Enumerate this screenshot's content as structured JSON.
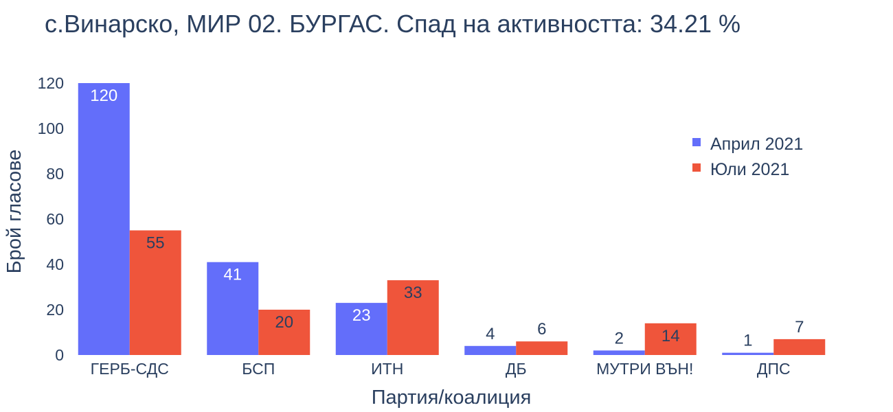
{
  "chart_data": {
    "type": "bar",
    "title": "с.Винарско, МИР 02. БУРГАС. Спад на активността: 34.21 %",
    "xlabel": "Партия/коалиция",
    "ylabel": "Брой гласове",
    "categories": [
      "ГЕРБ-СДС",
      "БСП",
      "ИТН",
      "ДБ",
      "МУТРИ ВЪН!",
      "ДПС"
    ],
    "series": [
      {
        "name": "Април 2021",
        "color": "#636efa",
        "values": [
          120,
          41,
          23,
          4,
          2,
          1
        ]
      },
      {
        "name": "Юли 2021",
        "color": "#ef553b",
        "values": [
          55,
          20,
          33,
          6,
          14,
          7
        ]
      }
    ],
    "yticks": [
      0,
      20,
      40,
      60,
      80,
      100,
      120
    ],
    "ylim": [
      0,
      120
    ],
    "grid": false,
    "legend_position": "top-right"
  }
}
